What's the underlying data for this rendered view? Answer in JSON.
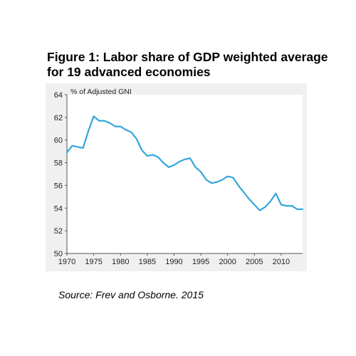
{
  "title": "Figure 1: Labor share of GDP weighted average for 19 advanced economies",
  "source": "Source: Frev and Osborne. 2015",
  "colors": {
    "line": "#33a6dc",
    "panel_bg": "#f0f0f0",
    "plot_bg": "#ffffff"
  },
  "chart_data": {
    "type": "line",
    "title": "Figure 1: Labor share of GDP weighted average for 19 advanced economies",
    "ylabel": "% of Adjusted GNI",
    "xlabel": "",
    "xlim": [
      1970,
      2014
    ],
    "ylim": [
      50,
      64
    ],
    "xticks": [
      1970,
      1975,
      1980,
      1985,
      1990,
      1995,
      2000,
      2005,
      2010
    ],
    "yticks": [
      50,
      52,
      54,
      56,
      58,
      60,
      62,
      64
    ],
    "grid": false,
    "legend": "none",
    "series": [
      {
        "x": [
          1970,
          1971,
          1972,
          1973,
          1974,
          1975,
          1976,
          1977,
          1978,
          1979,
          1980,
          1981,
          1982,
          1983,
          1984,
          1985,
          1986,
          1987,
          1988,
          1989,
          1990,
          1991,
          1992,
          1993,
          1994,
          1995,
          1996,
          1997,
          1998,
          1999,
          2000,
          2001,
          2002,
          2003,
          2004,
          2005,
          2006,
          2007,
          2008,
          2009,
          2010,
          2011,
          2012,
          2013,
          2014
        ],
        "values": [
          58.9,
          59.5,
          59.4,
          59.3,
          60.8,
          62.1,
          61.7,
          61.7,
          61.5,
          61.2,
          61.2,
          60.9,
          60.7,
          60.1,
          59.1,
          58.6,
          58.7,
          58.5,
          58.0,
          57.6,
          57.8,
          58.1,
          58.3,
          58.4,
          57.6,
          57.2,
          56.5,
          56.2,
          56.3,
          56.5,
          56.8,
          56.7,
          56.0,
          55.4,
          54.8,
          54.3,
          53.8,
          54.1,
          54.6,
          55.3,
          54.3,
          54.2,
          54.2,
          53.9,
          53.9
        ]
      }
    ]
  }
}
